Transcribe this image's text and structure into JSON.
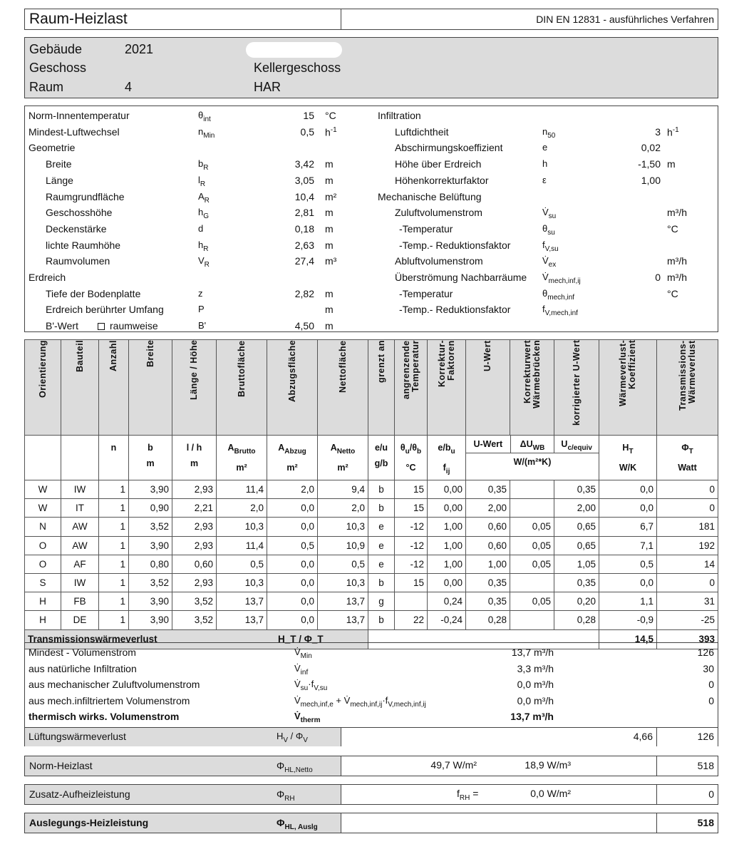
{
  "header": {
    "title": "Raum-Heizlast",
    "method": "DIN EN 12831 - ausführliches Verfahren"
  },
  "building": {
    "gebaeude_label": "Gebäude",
    "gebaeude_value": "2021",
    "geschoss_label": "Geschoss",
    "geschoss_value": "Kellergeschoss",
    "raum_label": "Raum",
    "raum_number": "4",
    "raum_name": "HAR"
  },
  "params_left": [
    {
      "label": "Norm-Innentemperatur",
      "sym": "θ",
      "sub": "int",
      "value": "15",
      "unit": "°C"
    },
    {
      "label": "Mindest-Luftwechsel",
      "sym": "n",
      "sub": "Min",
      "value": "0,5",
      "unit": "h",
      "unit_sup": "-1"
    },
    {
      "label": "Geometrie",
      "heading": true
    },
    {
      "label": "Breite",
      "sym": "b",
      "sub": "R",
      "value": "3,42",
      "unit": "m",
      "indent": true
    },
    {
      "label": "Länge",
      "sym": "l",
      "sub": "R",
      "value": "3,05",
      "unit": "m",
      "indent": true
    },
    {
      "label": "Raumgrundfläche",
      "sym": "A",
      "sub": "R",
      "value": "10,4",
      "unit": "m²",
      "indent": true
    },
    {
      "label": "Geschosshöhe",
      "sym": "h",
      "sub": "G",
      "value": "2,81",
      "unit": "m",
      "indent": true
    },
    {
      "label": "Deckenstärke",
      "sym": "d",
      "sub": "",
      "value": "0,18",
      "unit": "m",
      "indent": true
    },
    {
      "label": "lichte Raumhöhe",
      "sym": "h",
      "sub": "R",
      "value": "2,63",
      "unit": "m",
      "indent": true
    },
    {
      "label": "Raumvolumen",
      "sym": "V",
      "sub": "R",
      "value": "27,4",
      "unit": "m³",
      "indent": true
    },
    {
      "label": "Erdreich",
      "heading": true
    },
    {
      "label": "Tiefe der Bodenplatte",
      "sym": "z",
      "sub": "",
      "value": "2,82",
      "unit": "m",
      "indent": true
    },
    {
      "label": "Erdreich berührter Umfang",
      "sym": "P",
      "sub": "",
      "value": "",
      "unit": "m",
      "indent": true
    },
    {
      "label": "B'-Wert",
      "checkbox_label": "raumweise",
      "checkbox_checked": false,
      "sym": "B'",
      "sub": "",
      "value": "4,50",
      "unit": "m",
      "indent": true
    }
  ],
  "params_right": [
    {
      "label": "Infiltration",
      "heading": true
    },
    {
      "label": "Luftdichtheit",
      "sym": "n",
      "sub": "50",
      "value": "3",
      "unit": "h",
      "unit_sup": "-1",
      "indent": true
    },
    {
      "label": "Abschirmungskoeffizient",
      "sym": "e",
      "sub": "",
      "value": "0,02",
      "unit": "",
      "indent": true
    },
    {
      "label": "Höhe über Erdreich",
      "sym": "h",
      "sub": "",
      "value": "-1,50",
      "unit": "m",
      "indent": true
    },
    {
      "label": "Höhenkorrekturfaktor",
      "sym": "ε",
      "sub": "",
      "value": "1,00",
      "unit": "",
      "indent": true
    },
    {
      "label": "Mechanische Belüftung",
      "heading": true
    },
    {
      "label": "Zuluftvolumenstrom",
      "sym": "V̇",
      "sub": "su",
      "value": "",
      "unit": "m³/h",
      "indent": true
    },
    {
      "label": "-Temperatur",
      "sym": "θ",
      "sub": "su",
      "value": "",
      "unit": "°C",
      "indent2": true
    },
    {
      "label": "-Temp.- Reduktionsfaktor",
      "sym": "f",
      "sub": "V,su",
      "value": "",
      "unit": "",
      "indent2": true
    },
    {
      "label": "Abluftvolumenstrom",
      "sym": "V̇",
      "sub": "ex",
      "value": "",
      "unit": "m³/h",
      "indent": true
    },
    {
      "label": "Überströmung Nachbarräume",
      "sym": "V̇",
      "sub": "mech,inf,ij",
      "value": "0",
      "unit": "m³/h",
      "indent": true
    },
    {
      "label": "-Temperatur",
      "sym": "θ",
      "sub": "mech,inf",
      "value": "",
      "unit": "°C",
      "indent2": true
    },
    {
      "label": "-Temp.- Reduktionsfaktor",
      "sym": "f",
      "sub": "V,mech,inf",
      "value": "",
      "unit": "",
      "indent2": true
    }
  ],
  "table": {
    "headers": [
      "Orientierung",
      "Bauteil",
      "Anzahl",
      "Breite",
      "Länge / Höhe",
      "Bruttofläche",
      "Abzugsfläche",
      "Nettofläche",
      "grenzt an",
      "angrenzende Temperatur",
      "Korrektur- Faktoren",
      "U-Wert",
      "Korrekturwert Wärmebrücken",
      "korrigierter U-Wert",
      "Wärmeverlust- Koeffizient",
      "Transmissions- Wärmeverlust"
    ],
    "symbols": [
      {
        "s": ""
      },
      {
        "s": ""
      },
      {
        "s": "n"
      },
      {
        "s": "b"
      },
      {
        "s": "l / h"
      },
      {
        "s": "A",
        "sub": "Brutto"
      },
      {
        "s": "A",
        "sub": "Abzug"
      },
      {
        "s": "A",
        "sub": "Netto"
      },
      {
        "s": "e/u"
      },
      {
        "s": "θ",
        "sub": "u",
        "s2": "/θ",
        "sub2": "b"
      },
      {
        "s": "e/b",
        "sub": "u"
      },
      {
        "s": "U-Wert"
      },
      {
        "s": "ΔU",
        "sub": "WB"
      },
      {
        "s": "U",
        "sub": "c/equiv"
      },
      {
        "s": "H",
        "sub": "T"
      },
      {
        "s": "Φ",
        "sub": "T"
      }
    ],
    "units": [
      "",
      "",
      "",
      "m",
      "m",
      "m²",
      "m²",
      "m²",
      "g/b",
      "°C",
      "f_ij",
      "W/(m²*K)",
      "",
      "",
      "W/K",
      "Watt"
    ],
    "rows": [
      [
        "W",
        "IW",
        "1",
        "3,90",
        "2,93",
        "11,4",
        "2,0",
        "9,4",
        "b",
        "15",
        "0,00",
        "0,35",
        "",
        "0,35",
        "0,0",
        "0"
      ],
      [
        "W",
        "IT",
        "1",
        "0,90",
        "2,21",
        "2,0",
        "0,0",
        "2,0",
        "b",
        "15",
        "0,00",
        "2,00",
        "",
        "2,00",
        "0,0",
        "0"
      ],
      [
        "N",
        "AW",
        "1",
        "3,52",
        "2,93",
        "10,3",
        "0,0",
        "10,3",
        "e",
        "-12",
        "1,00",
        "0,60",
        "0,05",
        "0,65",
        "6,7",
        "181"
      ],
      [
        "O",
        "AW",
        "1",
        "3,90",
        "2,93",
        "11,4",
        "0,5",
        "10,9",
        "e",
        "-12",
        "1,00",
        "0,60",
        "0,05",
        "0,65",
        "7,1",
        "192"
      ],
      [
        "O",
        "AF",
        "1",
        "0,80",
        "0,60",
        "0,5",
        "0,0",
        "0,5",
        "e",
        "-12",
        "1,00",
        "1,00",
        "0,05",
        "1,05",
        "0,5",
        "14"
      ],
      [
        "S",
        "IW",
        "1",
        "3,52",
        "2,93",
        "10,3",
        "0,0",
        "10,3",
        "b",
        "15",
        "0,00",
        "0,35",
        "",
        "0,35",
        "0,0",
        "0"
      ],
      [
        "H",
        "FB",
        "1",
        "3,90",
        "3,52",
        "13,7",
        "0,0",
        "13,7",
        "g",
        "",
        "0,24",
        "0,35",
        "0,05",
        "0,20",
        "1,1",
        "31"
      ],
      [
        "H",
        "DE",
        "1",
        "3,90",
        "3,52",
        "13,7",
        "0,0",
        "13,7",
        "b",
        "22",
        "-0,24",
        "0,28",
        "",
        "0,28",
        "-0,9",
        "-25"
      ]
    ],
    "sum_label": "Transmissionswärmeverlust",
    "sum_symbol": "H_T / Φ_T",
    "sum_ht": "14,5",
    "sum_phi": "393"
  },
  "ventilation": {
    "rows": [
      {
        "label": "Mindest - Volumenstrom",
        "sym": "V̇",
        "sub": "Min",
        "flow": "13,7 m³/h",
        "watt": "126"
      },
      {
        "label": "aus natürliche Infiltration",
        "sym": "V̇",
        "sub": "inf",
        "flow": "3,3 m³/h",
        "watt": "30"
      },
      {
        "label": "aus mechanischer Zuluftvolumenstrom",
        "sym": "V̇",
        "sub": "su",
        "sym2": "·f",
        "sub2": "V,su",
        "flow": "0,0 m³/h",
        "watt": "0"
      },
      {
        "label": "aus mech.infiltriertem Volumenstrom",
        "sym": "V̇",
        "sub": "mech,inf,e",
        "sym2": " + V̇",
        "sub2": "mech,inf,ij",
        "sym3": "·f",
        "sub3": "V,mech,inf,ij",
        "flow": "0,0 m³/h",
        "watt": "0"
      },
      {
        "label": "thermisch wirks. Volumenstrom",
        "sym": "V̇",
        "sub": "therm",
        "flow": "13,7 m³/h",
        "watt": "",
        "bold": true
      }
    ],
    "loss_label": "Lüftungswärmeverlust",
    "loss_symbol": "H",
    "loss_sub": "V",
    "loss_symbol2": " / Φ",
    "loss_sub2": "V",
    "loss_hv": "4,66",
    "loss_phi": "126"
  },
  "norm": {
    "label": "Norm-Heizlast",
    "sym": "Φ",
    "sub": "HL,Netto",
    "per_area": "49,7 W/m²",
    "per_volume": "18,9 W/m³",
    "value": "518"
  },
  "zusatz": {
    "label": "Zusatz-Aufheizleistung",
    "sym": "Φ",
    "sub": "RH",
    "f_sym": "f",
    "f_sub": "RH",
    "f_eq": "=",
    "f_value": "0,0 W/m²",
    "value": "0"
  },
  "auslegung": {
    "label": "Auslegungs-Heizleistung",
    "sym": "Φ",
    "sub": "HL, Auslg",
    "value": "518"
  }
}
